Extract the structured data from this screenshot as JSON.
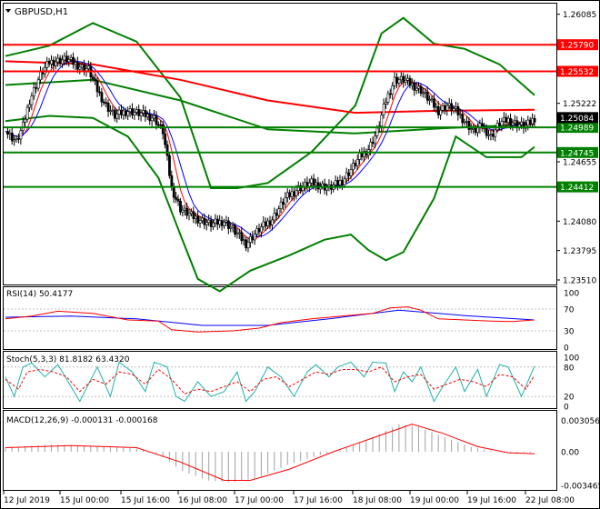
{
  "window": {
    "title": "GBPUSD,H1",
    "colors": {
      "background": "#ffffff",
      "frame": "#000000",
      "candle": "#000000",
      "bollinger": "#008000",
      "ma_long": "#ff0000",
      "ma_mid": "#008000",
      "ma_fast_blue": "#0000ff",
      "ma_fast_red": "#ff0000",
      "level_resistance": "#ff0000",
      "level_support": "#008000",
      "rsi_line": "#ff0000",
      "rsi_signal": "#0000ff",
      "stoch_main": "#20b2aa",
      "stoch_signal": "#ff0000",
      "macd_hist": "#a0a0a0",
      "macd_signal": "#ff0000",
      "badge_resistance": "#ff0000",
      "badge_support": "#008000",
      "badge_price": "#000000"
    }
  },
  "chart_data": [
    {
      "type": "candlestick",
      "title": "GBPUSD,H1",
      "ylim": [
        1.2351,
        1.261
      ],
      "y_ticks": [
        "1.26085",
        "1.25790",
        "1.25532",
        "1.25222",
        "1.25084",
        "1.24989",
        "1.24745",
        "1.24655",
        "1.24412",
        "1.24080",
        "1.23795",
        "1.23510"
      ],
      "x_ticks": [
        "12 Jul 2019",
        "15 Jul 00:00",
        "15 Jul 16:00",
        "16 Jul 08:00",
        "17 Jul 00:00",
        "17 Jul 16:00",
        "18 Jul 08:00",
        "19 Jul 00:00",
        "19 Jul 16:00",
        "22 Jul 08:00"
      ],
      "levels": [
        {
          "value": 1.2579,
          "label": "1.25790",
          "kind": "resistance"
        },
        {
          "value": 1.25532,
          "label": "1.25532",
          "kind": "resistance"
        },
        {
          "value": 1.24989,
          "label": "1.24989",
          "kind": "support"
        },
        {
          "value": 1.24745,
          "label": "1.24745",
          "kind": "support"
        },
        {
          "value": 1.24412,
          "label": "1.24412",
          "kind": "support"
        }
      ],
      "current_price": {
        "value": 1.25084,
        "label": "1.25084"
      },
      "close_path": [
        [
          0,
          1.2495
        ],
        [
          5,
          1.2485
        ],
        [
          8,
          1.25
        ],
        [
          11,
          1.2525
        ],
        [
          16,
          1.255
        ],
        [
          20,
          1.2562
        ],
        [
          28,
          1.2565
        ],
        [
          34,
          1.2558
        ],
        [
          38,
          1.2555
        ],
        [
          42,
          1.2535
        ],
        [
          46,
          1.252
        ],
        [
          50,
          1.251
        ],
        [
          56,
          1.2515
        ],
        [
          62,
          1.2512
        ],
        [
          68,
          1.2508
        ],
        [
          72,
          1.2495
        ],
        [
          76,
          1.244
        ],
        [
          80,
          1.242
        ],
        [
          86,
          1.2412
        ],
        [
          94,
          1.2405
        ],
        [
          100,
          1.2408
        ],
        [
          104,
          1.24
        ],
        [
          110,
          1.2386
        ],
        [
          116,
          1.24
        ],
        [
          122,
          1.241
        ],
        [
          128,
          1.243
        ],
        [
          134,
          1.244
        ],
        [
          140,
          1.2445
        ],
        [
          148,
          1.244
        ],
        [
          154,
          1.2447
        ],
        [
          158,
          1.2458
        ],
        [
          162,
          1.247
        ],
        [
          166,
          1.2478
        ],
        [
          170,
          1.2495
        ],
        [
          174,
          1.2525
        ],
        [
          178,
          1.2545
        ],
        [
          182,
          1.2545
        ],
        [
          186,
          1.254
        ],
        [
          190,
          1.2535
        ],
        [
          194,
          1.2525
        ],
        [
          198,
          1.2515
        ],
        [
          202,
          1.252
        ],
        [
          206,
          1.2515
        ],
        [
          210,
          1.2505
        ],
        [
          214,
          1.2495
        ],
        [
          218,
          1.25
        ],
        [
          222,
          1.249
        ],
        [
          226,
          1.2503
        ],
        [
          230,
          1.2506
        ],
        [
          234,
          1.2502
        ],
        [
          238,
          1.25
        ],
        [
          242,
          1.2508
        ]
      ],
      "overlays": {
        "ma_long": [
          [
            0,
            1.2563
          ],
          [
            40,
            1.256
          ],
          [
            80,
            1.2545
          ],
          [
            120,
            1.2525
          ],
          [
            160,
            1.2513
          ],
          [
            200,
            1.2515
          ],
          [
            242,
            1.2516
          ]
        ],
        "ma_mid": [
          [
            0,
            1.254
          ],
          [
            40,
            1.2545
          ],
          [
            80,
            1.2525
          ],
          [
            120,
            1.2497
          ],
          [
            160,
            1.2493
          ],
          [
            200,
            1.2498
          ],
          [
            242,
            1.2502
          ]
        ],
        "bb_upper": [
          [
            0,
            1.2568
          ],
          [
            20,
            1.2578
          ],
          [
            40,
            1.26
          ],
          [
            60,
            1.2582
          ],
          [
            80,
            1.2528
          ],
          [
            94,
            1.244
          ],
          [
            106,
            1.244
          ],
          [
            120,
            1.2445
          ],
          [
            140,
            1.2475
          ],
          [
            160,
            1.252
          ],
          [
            172,
            1.259
          ],
          [
            182,
            1.2605
          ],
          [
            196,
            1.258
          ],
          [
            210,
            1.2575
          ],
          [
            226,
            1.256
          ],
          [
            242,
            1.253
          ]
        ],
        "bb_lower": [
          [
            0,
            1.2505
          ],
          [
            20,
            1.251
          ],
          [
            40,
            1.2508
          ],
          [
            56,
            1.249
          ],
          [
            70,
            1.245
          ],
          [
            80,
            1.2395
          ],
          [
            88,
            1.2352
          ],
          [
            98,
            1.234
          ],
          [
            112,
            1.236
          ],
          [
            130,
            1.2375
          ],
          [
            146,
            1.239
          ],
          [
            158,
            1.2395
          ],
          [
            166,
            1.238
          ],
          [
            174,
            1.237
          ],
          [
            182,
            1.2378
          ],
          [
            196,
            1.243
          ],
          [
            206,
            1.249
          ],
          [
            220,
            1.247
          ],
          [
            236,
            1.247
          ],
          [
            242,
            1.248
          ]
        ]
      }
    },
    {
      "type": "line",
      "title": "RSI(14) 50.4177",
      "ylim": [
        0,
        100
      ],
      "y_ticks": [
        "100",
        "70",
        "30",
        "0"
      ],
      "series": [
        {
          "values": [
            [
              0,
              52
            ],
            [
              12,
              57
            ],
            [
              24,
              66
            ],
            [
              40,
              62
            ],
            [
              56,
              50
            ],
            [
              70,
              48
            ],
            [
              76,
              32
            ],
            [
              88,
              28
            ],
            [
              104,
              30
            ],
            [
              116,
              35
            ],
            [
              126,
              45
            ],
            [
              140,
              52
            ],
            [
              156,
              58
            ],
            [
              168,
              62
            ],
            [
              176,
              72
            ],
            [
              184,
              74
            ],
            [
              190,
              68
            ],
            [
              198,
              52
            ],
            [
              210,
              50
            ],
            [
              222,
              48
            ],
            [
              232,
              47
            ],
            [
              242,
              50
            ]
          ]
        },
        {
          "values": [
            [
              0,
              55
            ],
            [
              30,
              57
            ],
            [
              60,
              52
            ],
            [
              90,
              40
            ],
            [
              120,
              40
            ],
            [
              150,
              53
            ],
            [
              180,
              68
            ],
            [
              210,
              58
            ],
            [
              242,
              50
            ]
          ]
        }
      ]
    },
    {
      "type": "line",
      "title": "Stoch(5,3,3) 81.8182 63.4320",
      "ylim": [
        0,
        100
      ],
      "y_ticks": [
        "100",
        "80",
        "20",
        "0"
      ],
      "series": [
        {
          "values": [
            [
              0,
              60
            ],
            [
              4,
              20
            ],
            [
              8,
              80
            ],
            [
              12,
              88
            ],
            [
              18,
              60
            ],
            [
              24,
              85
            ],
            [
              30,
              40
            ],
            [
              34,
              10
            ],
            [
              38,
              45
            ],
            [
              42,
              80
            ],
            [
              48,
              20
            ],
            [
              52,
              90
            ],
            [
              58,
              70
            ],
            [
              64,
              30
            ],
            [
              68,
              90
            ],
            [
              74,
              80
            ],
            [
              78,
              20
            ],
            [
              82,
              10
            ],
            [
              88,
              50
            ],
            [
              94,
              20
            ],
            [
              100,
              30
            ],
            [
              106,
              70
            ],
            [
              110,
              10
            ],
            [
              114,
              30
            ],
            [
              120,
              80
            ],
            [
              126,
              60
            ],
            [
              132,
              20
            ],
            [
              138,
              70
            ],
            [
              142,
              85
            ],
            [
              148,
              60
            ],
            [
              152,
              80
            ],
            [
              158,
              90
            ],
            [
              164,
              60
            ],
            [
              168,
              90
            ],
            [
              174,
              88
            ],
            [
              178,
              30
            ],
            [
              182,
              70
            ],
            [
              186,
              50
            ],
            [
              190,
              80
            ],
            [
              196,
              10
            ],
            [
              200,
              40
            ],
            [
              206,
              80
            ],
            [
              210,
              30
            ],
            [
              216,
              75
            ],
            [
              220,
              20
            ],
            [
              226,
              85
            ],
            [
              230,
              80
            ],
            [
              236,
              20
            ],
            [
              242,
              82
            ]
          ]
        },
        {
          "values": [
            [
              0,
              55
            ],
            [
              6,
              35
            ],
            [
              10,
              70
            ],
            [
              16,
              75
            ],
            [
              22,
              70
            ],
            [
              28,
              60
            ],
            [
              34,
              30
            ],
            [
              40,
              55
            ],
            [
              46,
              45
            ],
            [
              52,
              70
            ],
            [
              58,
              65
            ],
            [
              64,
              45
            ],
            [
              70,
              75
            ],
            [
              76,
              55
            ],
            [
              82,
              25
            ],
            [
              88,
              35
            ],
            [
              94,
              30
            ],
            [
              100,
              40
            ],
            [
              106,
              50
            ],
            [
              112,
              30
            ],
            [
              118,
              55
            ],
            [
              124,
              60
            ],
            [
              130,
              40
            ],
            [
              136,
              55
            ],
            [
              142,
              70
            ],
            [
              148,
              65
            ],
            [
              154,
              75
            ],
            [
              160,
              75
            ],
            [
              166,
              70
            ],
            [
              172,
              80
            ],
            [
              178,
              50
            ],
            [
              184,
              60
            ],
            [
              190,
              65
            ],
            [
              196,
              35
            ],
            [
              202,
              45
            ],
            [
              208,
              55
            ],
            [
              214,
              50
            ],
            [
              220,
              40
            ],
            [
              226,
              65
            ],
            [
              232,
              60
            ],
            [
              238,
              35
            ],
            [
              242,
              63
            ]
          ]
        }
      ]
    },
    {
      "type": "bar",
      "title": "MACD(12,26,9) -0.000131 -0.000168",
      "ylim": [
        -0.003465,
        0.003465
      ],
      "y_ticks": [
        "0.003056",
        "0.00",
        "-0.003465"
      ],
      "histogram": [
        [
          0,
          0.0004
        ],
        [
          20,
          0.0007
        ],
        [
          40,
          0.0006
        ],
        [
          60,
          0.0003
        ],
        [
          70,
          -0.0002
        ],
        [
          80,
          -0.0018
        ],
        [
          92,
          -0.0028
        ],
        [
          104,
          -0.003
        ],
        [
          116,
          -0.0025
        ],
        [
          130,
          -0.0012
        ],
        [
          146,
          -0.0002
        ],
        [
          158,
          0.0005
        ],
        [
          170,
          0.0016
        ],
        [
          180,
          0.0027
        ],
        [
          188,
          0.0025
        ],
        [
          200,
          0.0015
        ],
        [
          214,
          0.0004
        ],
        [
          228,
          -0.0001
        ],
        [
          242,
          -0.0001
        ]
      ],
      "signal": [
        [
          0,
          0.0004
        ],
        [
          30,
          0.0006
        ],
        [
          60,
          0.0004
        ],
        [
          80,
          -0.001
        ],
        [
          100,
          -0.0028
        ],
        [
          112,
          -0.0028
        ],
        [
          130,
          -0.0017
        ],
        [
          150,
          0.0
        ],
        [
          170,
          0.0015
        ],
        [
          186,
          0.0027
        ],
        [
          200,
          0.0018
        ],
        [
          216,
          0.0005
        ],
        [
          230,
          -0.0001
        ],
        [
          242,
          -0.0002
        ]
      ]
    }
  ]
}
